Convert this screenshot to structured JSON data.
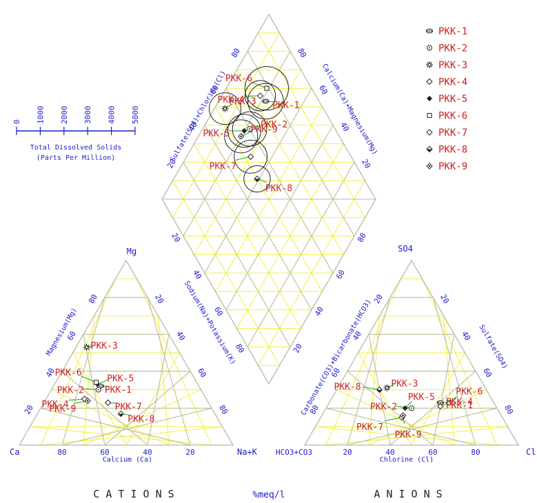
{
  "chart_data": {
    "type": "piper",
    "colors": {
      "grid": "#f2ef3c",
      "frame": "#b9b9a8",
      "axis_text": "#1a1acd",
      "sample_label": "#cc2222",
      "connector": "#13a813"
    },
    "cation_triangle": {
      "apex_top": "Mg",
      "apex_left": "Ca",
      "apex_right": "Na+K",
      "label_left_axis": "Magnesium(Mg)",
      "label_right_axis": "Sodium(Na)+Potassium(K)",
      "label_bottom_axis": "Calcium (Ca)",
      "ticks_left": [
        "20",
        "40",
        "60",
        "80"
      ],
      "ticks_right": [
        "20",
        "40",
        "60",
        "80"
      ],
      "ticks_bottom": [
        "80",
        "60",
        "40",
        "20"
      ],
      "title": "C A T I O N S"
    },
    "anion_triangle": {
      "apex_top": "SO4",
      "apex_left": "HCO3+CO3",
      "apex_right": "Cl",
      "label_left_axis": "Carbonate(CO3)+Bicarbonate(HCO3)",
      "label_right_axis": "Sulfate(SO4)",
      "label_bottom_axis": "Chlorine (Cl)",
      "ticks_left": [
        "80",
        "60",
        "40",
        "20"
      ],
      "ticks_right": [
        "80",
        "60",
        "40",
        "20"
      ],
      "ticks_bottom": [
        "20",
        "40",
        "60",
        "80"
      ],
      "title": "A N I O N S"
    },
    "diamond": {
      "label_upper_left": "Sulfate(SO4)+Chloride(Cl)",
      "label_upper_right": "Calcium(Ca)+Magnesium(Mg)",
      "ticks_upper_left": [
        "20",
        "40",
        "60",
        "80"
      ],
      "ticks_upper_right": [
        "80",
        "60",
        "40",
        "20"
      ],
      "ticks_lower_left": [
        "20",
        "40",
        "60",
        "80"
      ],
      "ticks_lower_right": [
        "20",
        "40",
        "60",
        "80"
      ]
    },
    "center_label": "%meq/l",
    "tds_scale": {
      "ticks": [
        "0",
        "1000",
        "2000",
        "3000",
        "4000",
        "5000"
      ],
      "title_line1": "Total Dissolved Solids",
      "title_line2": "(Parts Per Million)"
    },
    "samples": [
      {
        "name": "PKK-1",
        "marker": "bowtie",
        "cation": {
          "ca": 46,
          "mg": 32,
          "nak": 22
        },
        "anion": {
          "hco3": 25,
          "cl": 52,
          "so4": 23
        },
        "diamond": {
          "so4cl": 75,
          "camg": 78
        },
        "tds": 1150
      },
      {
        "name": "PKK-2",
        "marker": "circle-dot",
        "cation": {
          "ca": 48,
          "mg": 30,
          "nak": 22
        },
        "anion": {
          "hco3": 40,
          "cl": 40,
          "so4": 20
        },
        "diamond": {
          "so4cl": 60,
          "camg": 78
        },
        "tds": 1100
      },
      {
        "name": "PKK-3",
        "marker": "star",
        "cation": {
          "ca": 42,
          "mg": 53,
          "nak": 5
        },
        "anion": {
          "hco3": 46,
          "cl": 23,
          "so4": 31
        },
        "diamond": {
          "so4cl": 54,
          "camg": 95
        },
        "tds": 1000
      },
      {
        "name": "PKK-4",
        "marker": "diamond",
        "cation": {
          "ca": 57,
          "mg": 25,
          "nak": 18
        },
        "anion": {
          "hco3": 26,
          "cl": 53,
          "so4": 21
        },
        "diamond": {
          "so4cl": 74,
          "camg": 82
        },
        "tds": 950
      },
      {
        "name": "PKK-5",
        "marker": "filled",
        "cation": {
          "ca": 47,
          "mg": 33,
          "nak": 20
        },
        "anion": {
          "hco3": 43,
          "cl": 37,
          "so4": 20
        },
        "diamond": {
          "so4cl": 57,
          "camg": 80
        },
        "tds": 1050
      },
      {
        "name": "PKK-6",
        "marker": "square",
        "cation": {
          "ca": 47,
          "mg": 34,
          "nak": 19
        },
        "anion": {
          "hco3": 21,
          "cl": 56,
          "so4": 23
        },
        "diamond": {
          "so4cl": 79,
          "camg": 81
        },
        "tds": 1450
      },
      {
        "name": "PKK-7",
        "marker": "diamond-open",
        "cation": {
          "ca": 47,
          "mg": 23,
          "nak": 30
        },
        "anion": {
          "hco3": 47,
          "cl": 38,
          "so4": 15
        },
        "diamond": {
          "so4cl": 53,
          "camg": 70
        },
        "tds": 1050
      },
      {
        "name": "PKK-8",
        "marker": "diamond-half",
        "cation": {
          "ca": 44,
          "mg": 17,
          "nak": 39
        },
        "anion": {
          "hco3": 50,
          "cl": 20,
          "so4": 30
        },
        "diamond": {
          "so4cl": 50,
          "camg": 61
        },
        "tds": 800
      },
      {
        "name": "PKK-9",
        "marker": "diamond-dot",
        "cation": {
          "ca": 56,
          "mg": 24,
          "nak": 20
        },
        "anion": {
          "hco3": 46,
          "cl": 38,
          "so4": 16
        },
        "diamond": {
          "so4cl": 54,
          "camg": 80
        },
        "tds": 1050
      }
    ]
  }
}
